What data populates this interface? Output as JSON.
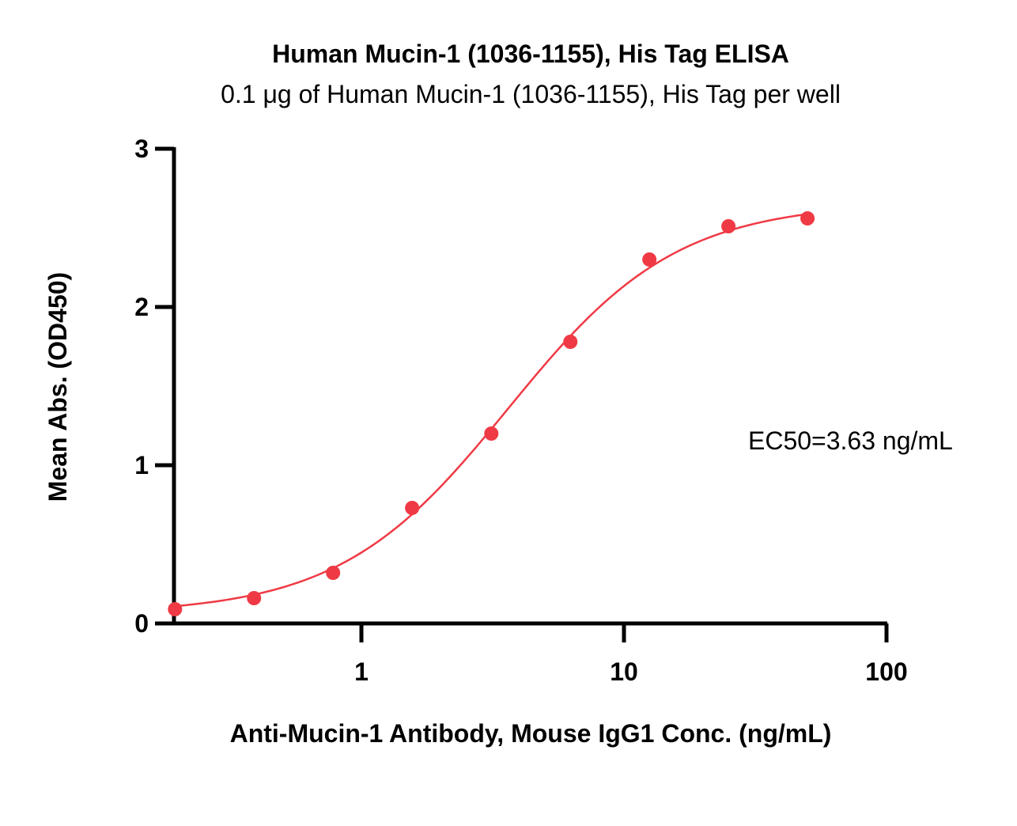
{
  "chart_data": {
    "type": "scatter",
    "title": "Human Mucin-1 (1036-1155), His Tag ELISA",
    "subtitle": "0.1 μg of Human Mucin-1 (1036-1155), His Tag per well",
    "xlabel": "Anti-Mucin-1 Antibody, Mouse IgG1 Conc. (ng/mL)",
    "ylabel": "Mean Abs. (OD450)",
    "x_scale": "log",
    "xlim": [
      0.19,
      100
    ],
    "ylim": [
      0,
      3
    ],
    "x_ticks": [
      1,
      10,
      100
    ],
    "x_tick_labels": [
      "1",
      "10",
      "100"
    ],
    "y_ticks": [
      0,
      1,
      2,
      3
    ],
    "y_tick_labels": [
      "0",
      "1",
      "2",
      "3"
    ],
    "grid": false,
    "color": "#ef3a45",
    "series": [
      {
        "x": [
          0.195,
          0.39,
          0.78,
          1.56,
          3.125,
          6.25,
          12.5,
          25,
          50
        ],
        "y": [
          0.09,
          0.16,
          0.32,
          0.73,
          1.2,
          1.78,
          2.3,
          2.51,
          2.56
        ]
      }
    ],
    "fit": {
      "bottom": 0.06,
      "top": 2.66,
      "ec50": 3.63,
      "hill": 1.35
    },
    "annotation": "EC50=3.63 ng/mL"
  }
}
